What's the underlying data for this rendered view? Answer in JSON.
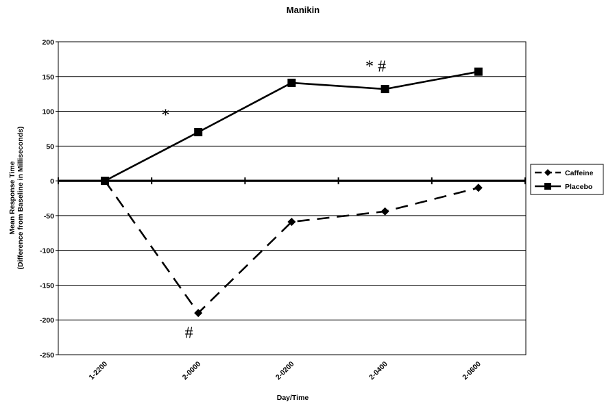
{
  "chart_data": {
    "type": "line",
    "title": "Manikin",
    "xlabel": "Day/Time",
    "ylabel_line1": "Mean Response Time",
    "ylabel_line2": "(Difference from Baseline in Milliseconds)",
    "categories": [
      "1-2200",
      "2-0000",
      "2-0200",
      "2-0400",
      "2-0600"
    ],
    "ylim": [
      -250,
      200
    ],
    "ytick_step": 50,
    "grid": true,
    "legend_position": "right",
    "series": [
      {
        "name": "Caffeine",
        "marker": "diamond",
        "dash": "dashed",
        "color": "#000000",
        "values": [
          0,
          -190,
          -59,
          -44,
          -10
        ]
      },
      {
        "name": "Placebo",
        "marker": "square",
        "dash": "solid",
        "color": "#000000",
        "values": [
          0,
          70,
          141,
          132,
          157
        ]
      }
    ],
    "annotations": [
      {
        "text": "*",
        "x_category": 1,
        "x_offset": -0.35,
        "y": 95
      },
      {
        "text": "* #",
        "x_category": 3,
        "x_offset": -0.1,
        "y": 165
      },
      {
        "text": "#",
        "x_category": 1,
        "x_offset": -0.1,
        "y": -218
      }
    ]
  }
}
